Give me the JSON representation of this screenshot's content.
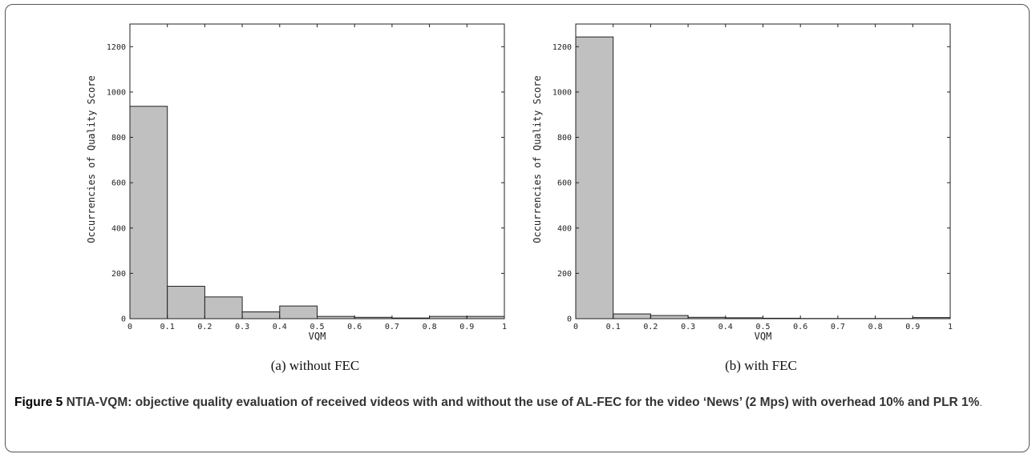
{
  "chart_data": [
    {
      "type": "bar",
      "subcaption": "(a) without FEC",
      "xlabel": "VQM",
      "ylabel": "Occurrencies of Quality Score",
      "xlim": [
        0,
        1
      ],
      "ylim": [
        0,
        1300
      ],
      "x_ticks": [
        "0",
        "0.1",
        "0.2",
        "0.3",
        "0.4",
        "0.5",
        "0.6",
        "0.7",
        "0.8",
        "0.9",
        "1"
      ],
      "y_ticks": [
        "0",
        "200",
        "400",
        "600",
        "800",
        "1000",
        "1200"
      ],
      "bins": [
        [
          0,
          0.1
        ],
        [
          0.1,
          0.2
        ],
        [
          0.2,
          0.3
        ],
        [
          0.3,
          0.4
        ],
        [
          0.4,
          0.5
        ],
        [
          0.5,
          0.6
        ],
        [
          0.6,
          0.7
        ],
        [
          0.7,
          0.8
        ],
        [
          0.8,
          0.9
        ],
        [
          0.9,
          1.0
        ]
      ],
      "values": [
        937,
        143,
        96,
        30,
        56,
        10,
        6,
        3,
        10,
        10
      ],
      "bar_color": "#c0c0c0",
      "grid": false
    },
    {
      "type": "bar",
      "subcaption": "(b) with FEC",
      "xlabel": "VQM",
      "ylabel": "Occurrencies of Quality Score",
      "xlim": [
        0,
        1
      ],
      "ylim": [
        0,
        1300
      ],
      "x_ticks": [
        "0",
        "0.1",
        "0.2",
        "0.3",
        "0.4",
        "0.5",
        "0.6",
        "0.7",
        "0.8",
        "0.9",
        "1"
      ],
      "y_ticks": [
        "0",
        "200",
        "400",
        "600",
        "800",
        "1000",
        "1200"
      ],
      "bins": [
        [
          0,
          0.1
        ],
        [
          0.1,
          0.2
        ],
        [
          0.2,
          0.3
        ],
        [
          0.3,
          0.4
        ],
        [
          0.4,
          0.5
        ],
        [
          0.5,
          0.6
        ],
        [
          0.6,
          0.7
        ],
        [
          0.7,
          0.8
        ],
        [
          0.8,
          0.9
        ],
        [
          0.9,
          1.0
        ]
      ],
      "values": [
        1243,
        21,
        14,
        6,
        4,
        2,
        1,
        1,
        1,
        5
      ],
      "bar_color": "#c0c0c0",
      "grid": false
    }
  ],
  "caption": {
    "figure_number": "Figure 5",
    "text": "NTIA-VQM: objective quality evaluation of received videos with and without the use of AL-FEC for the video ‘News’ (2 Mps) with overhead 10% and PLR 1%",
    "tail": "."
  }
}
